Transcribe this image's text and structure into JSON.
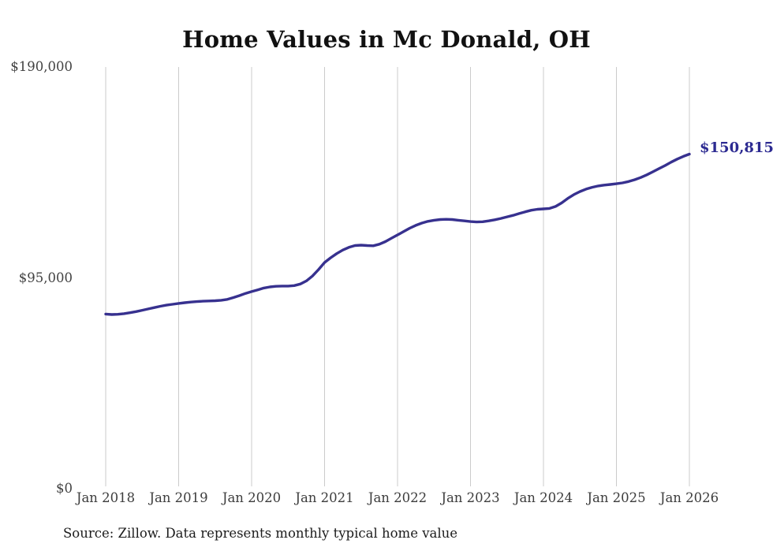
{
  "title": "Home Values in Mc Donald, OH",
  "source_note": "Source: Zillow. Data represents monthly typical home value",
  "end_label": "$150,815",
  "colors": {
    "line": "#37318f",
    "end_label": "#2c2a91",
    "gridline": "#cbcbcb",
    "title_text": "#111111",
    "axis_text": "#3d3d3d"
  },
  "y_axis": {
    "ticks": [
      "$190,000",
      "$95,000",
      "$0"
    ],
    "tick_values": [
      190000,
      95000,
      0
    ]
  },
  "x_axis": {
    "ticks": [
      "Jan 2018",
      "Jan 2019",
      "Jan 2020",
      "Jan 2021",
      "Jan 2022",
      "Jan 2023",
      "Jan 2024",
      "Jan 2025",
      "Jan 2026"
    ]
  },
  "chart_data": {
    "type": "line",
    "title": "Home Values in Mc Donald, OH",
    "xlabel": "",
    "ylabel": "",
    "ylim": [
      0,
      190000
    ],
    "y_tick_values": [
      0,
      95000,
      190000
    ],
    "grid": "vertical-only",
    "x_start": "2018-01",
    "x_end": "2026-01",
    "frequency": "monthly",
    "end_value": 150815,
    "end_value_label": "$150,815",
    "series": [
      {
        "name": "Typical home value",
        "values": [
          78900,
          78700,
          78800,
          79100,
          79500,
          80000,
          80600,
          81200,
          81800,
          82400,
          82900,
          83300,
          83700,
          84000,
          84300,
          84500,
          84700,
          84800,
          84900,
          85100,
          85500,
          86300,
          87200,
          88200,
          89000,
          89800,
          90600,
          91100,
          91400,
          91500,
          91500,
          91700,
          92400,
          93800,
          96000,
          98900,
          102100,
          104200,
          106100,
          107700,
          108900,
          109700,
          109900,
          109700,
          109600,
          110300,
          111500,
          113000,
          114500,
          116000,
          117500,
          118800,
          119800,
          120600,
          121100,
          121400,
          121500,
          121400,
          121100,
          120800,
          120500,
          120300,
          120400,
          120800,
          121300,
          121900,
          122600,
          123300,
          124100,
          124900,
          125600,
          126000,
          126200,
          126400,
          127300,
          128900,
          130900,
          132600,
          134000,
          135100,
          135900,
          136500,
          136900,
          137200,
          137500,
          137900,
          138500,
          139300,
          140300,
          141500,
          142900,
          144300,
          145700,
          147200,
          148600,
          149800,
          150815
        ]
      }
    ]
  }
}
